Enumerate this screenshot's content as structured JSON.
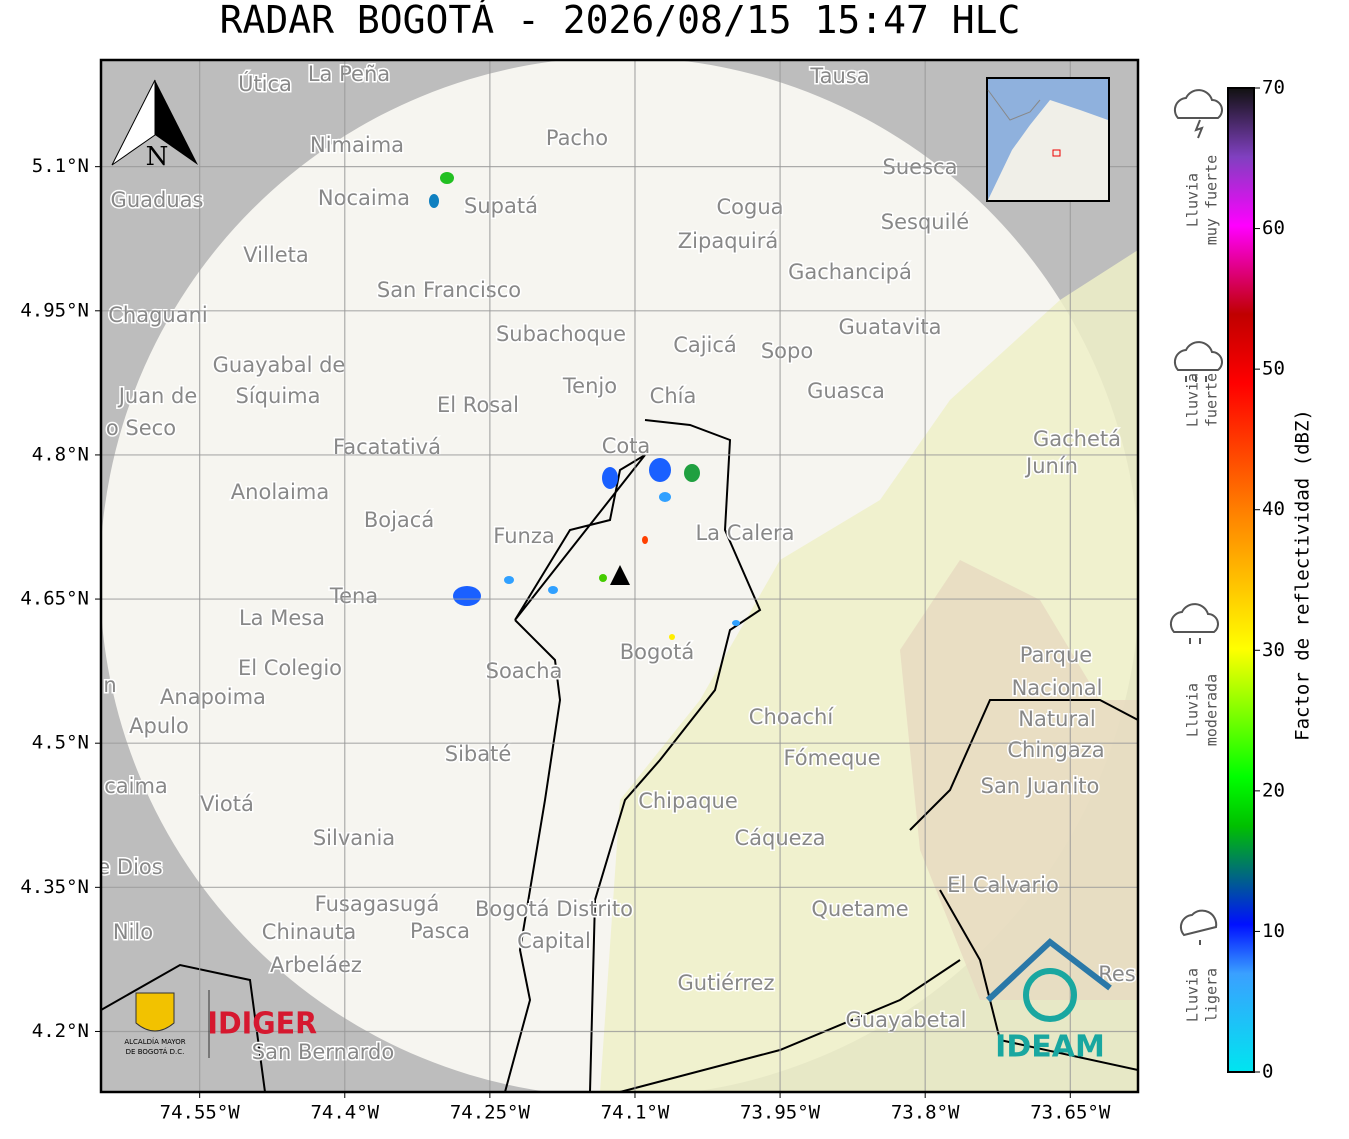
{
  "title": "RADAR BOGOTÁ - 2026/08/15 15:47 HLC",
  "map": {
    "xlim": [
      -74.652,
      -73.58
    ],
    "ylim": [
      4.137,
      5.211
    ],
    "xticks": [
      {
        "value": -74.55,
        "label": "74.55°W"
      },
      {
        "value": -74.4,
        "label": "74.4°W"
      },
      {
        "value": -74.25,
        "label": "74.25°W"
      },
      {
        "value": -74.1,
        "label": "74.1°W"
      },
      {
        "value": -73.95,
        "label": "73.95°W"
      },
      {
        "value": -73.8,
        "label": "73.8°W"
      },
      {
        "value": -73.65,
        "label": "73.65°W"
      }
    ],
    "yticks": [
      {
        "value": 5.1,
        "label": "5.1°N"
      },
      {
        "value": 4.95,
        "label": "4.95°N"
      },
      {
        "value": 4.8,
        "label": "4.8°N"
      },
      {
        "value": 4.65,
        "label": "4.65°N"
      },
      {
        "value": 4.5,
        "label": "4.5°N"
      },
      {
        "value": 4.35,
        "label": "4.35°N"
      },
      {
        "value": 4.2,
        "label": "4.2°N"
      }
    ],
    "north": "N",
    "places": [
      "La Peña",
      "Útica",
      "Tausa",
      "Pacho",
      "Nimaima",
      "Nocaima",
      "Supatá",
      "Guaduas",
      "Suesca",
      "Cogua",
      "Sesquilé",
      "Zipaquirá",
      "Villeta",
      "Gachancipá",
      "San Francisco",
      "Chaguani",
      "Guatavita",
      "Subachoque",
      "Cajicá",
      "Sopo",
      "Guayabal de",
      "Síquima",
      "Juan de",
      "Tenjo",
      "Chía",
      "Guasca",
      "El Rosal",
      "o Seco",
      "Gachetá",
      "Junín",
      "Facatativá",
      "Cota",
      "Anolaima",
      "Bojacá",
      "Funza",
      "La Calera",
      "Tena",
      "La Mesa",
      "Bogotá",
      "Parque",
      "El Colegio",
      "Soacha",
      "Nacional",
      "Anapoima",
      "Apulo",
      "Natural",
      "Choachí",
      "Chingaza",
      "Sibaté",
      "Fómeque",
      "San Juanito",
      "caima",
      "Viotá",
      "Chipaque",
      "Silvania",
      "Cáqueza",
      "e Dios",
      "El Calvario",
      "Fusagasugá",
      "Bogotá Distrito",
      "Quetame",
      "Nilo",
      "Chinauta",
      "Pasca",
      "Capital",
      "Arbeláez",
      "Gutiérrez",
      "Res",
      "Guayabetal",
      "San Bernardo",
      "n"
    ]
  },
  "colorbar": {
    "label": "Factor de reflectividad (dBZ)",
    "lim": [
      0,
      70
    ],
    "ticks": [
      0,
      10,
      20,
      30,
      40,
      50,
      60,
      70
    ]
  },
  "legend": [
    {
      "lines": [
        "Lluvia",
        "muy fuerte"
      ]
    },
    {
      "lines": [
        "Lluvia",
        "fuerte"
      ]
    },
    {
      "lines": [
        "Lluvia",
        "moderada"
      ]
    },
    {
      "lines": [
        "Lluvia",
        "ligera"
      ]
    }
  ],
  "logos": {
    "left": "IDIGER",
    "alcaldia": [
      "ALCALDÍA MAYOR",
      "DE BOGOTÁ D.C."
    ],
    "right": "IDEAM"
  }
}
